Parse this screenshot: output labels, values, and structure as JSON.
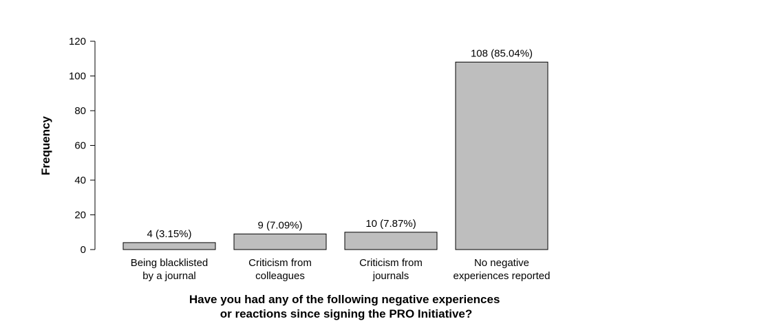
{
  "chart_data": {
    "type": "bar",
    "categories": [
      [
        "Being blacklisted",
        "by a journal"
      ],
      [
        "Criticism from",
        "colleagues"
      ],
      [
        "Criticism from",
        "journals"
      ],
      [
        "No negative",
        "experiences reported"
      ]
    ],
    "values": [
      4,
      9,
      10,
      108
    ],
    "data_labels": [
      "4 (3.15%)",
      "9 (7.09%)",
      "10 (7.87%)",
      "108 (85.04%)"
    ],
    "title": "",
    "xlabel": [
      "Have you had any of the following negative experiences",
      "or reactions since signing the PRO Initiative?"
    ],
    "ylabel": "Frequency",
    "ylim": [
      0,
      120
    ],
    "yticks": [
      "0",
      "20",
      "40",
      "60",
      "80",
      "100",
      "120"
    ],
    "grid": false,
    "bar_color": "#bebebe",
    "bar_edge_color": "#000000"
  }
}
